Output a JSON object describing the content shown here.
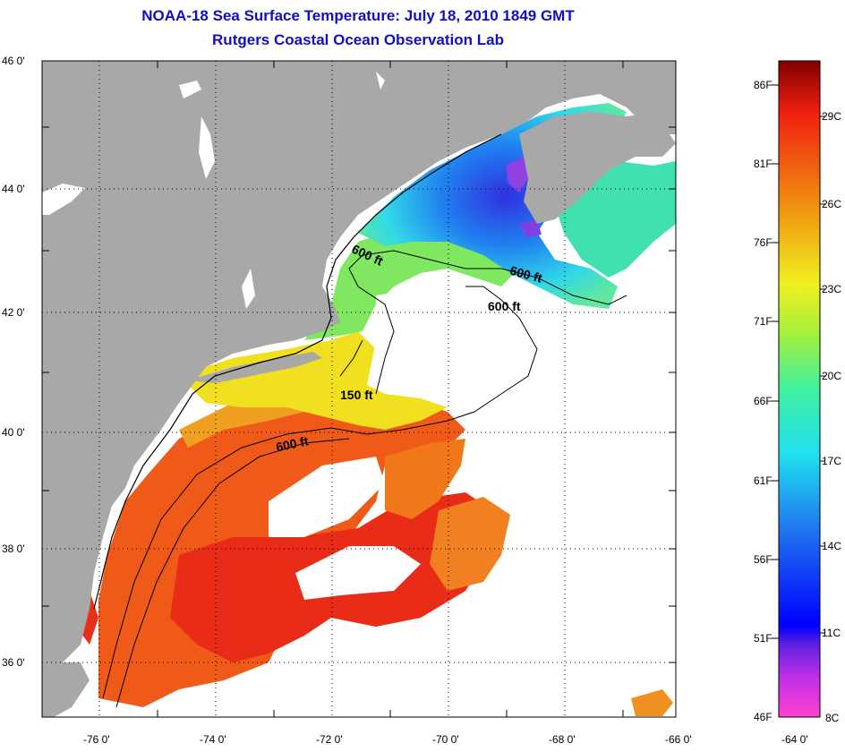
{
  "title_line1": "NOAA-18 Sea Surface Temperature:  July 18, 2010 1849 GMT",
  "title_line2": "Rutgers Coastal Ocean Observation Lab",
  "lat_labels": [
    "46 0'",
    "44 0'",
    "42 0'",
    "40 0'",
    "38 0'",
    "36 0'"
  ],
  "lon_labels": [
    "-76 0'",
    "-74 0'",
    "-72 0'",
    "-70 0'",
    "-68 0'",
    "-66 0'",
    "-64 0'"
  ],
  "contours": {
    "c600_a": "600 ft",
    "c600_b": "600 ft",
    "c600_c": "600 ft",
    "c150": "150 ft",
    "c600_d": "600 ft"
  },
  "colorbar": {
    "fahrenheit": [
      "86F",
      "81F",
      "76F",
      "71F",
      "66F",
      "61F",
      "56F",
      "51F",
      "46F"
    ],
    "celsius": [
      "29C",
      "26C",
      "23C",
      "20C",
      "17C",
      "14C",
      "11C",
      "8C"
    ]
  },
  "colors": {
    "land": "#a8a8a8",
    "title": "#1010c0",
    "warm": "#f05018",
    "hot": "#e82818",
    "yellow": "#f0e020",
    "green": "#60e060",
    "cyan": "#30d8e8",
    "blue": "#2040f0",
    "purple": "#8030e0"
  }
}
